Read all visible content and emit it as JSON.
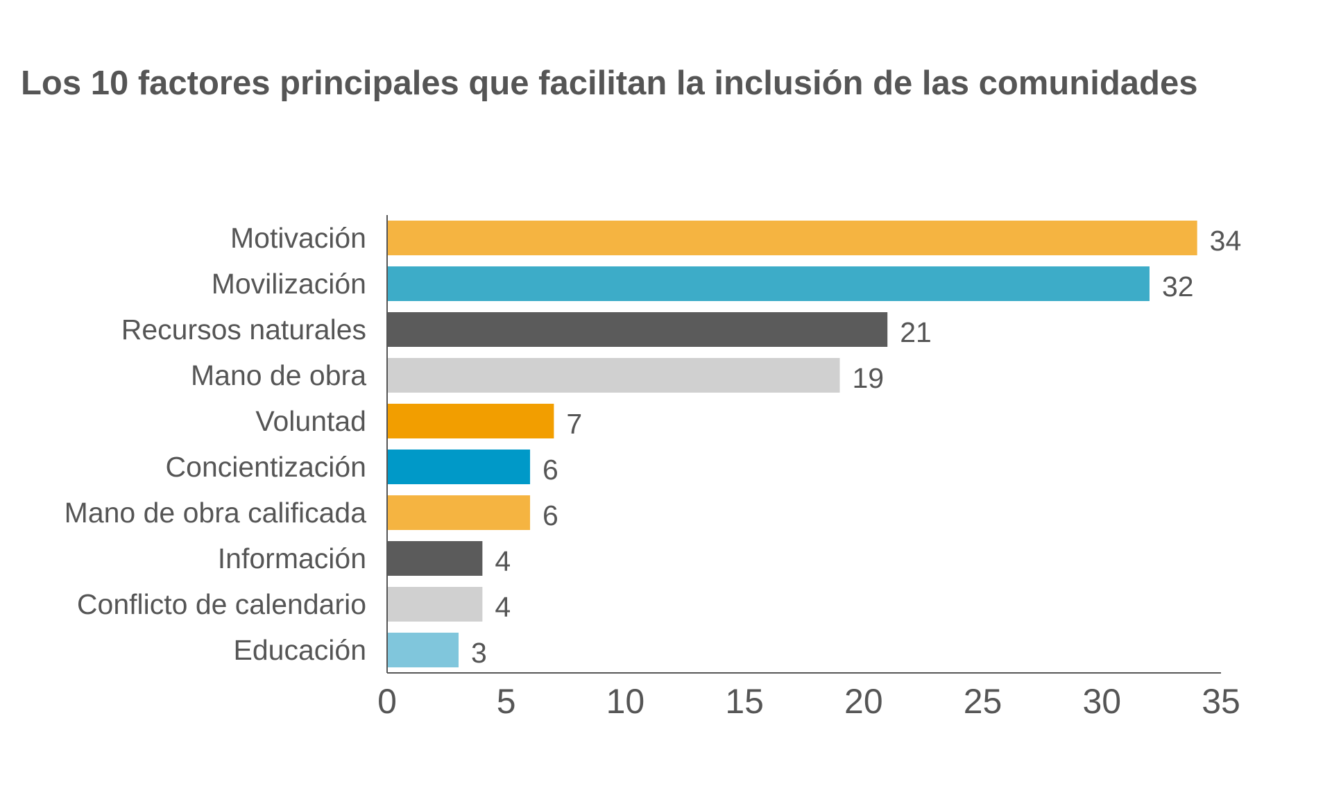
{
  "chart_data": {
    "type": "bar",
    "orientation": "horizontal",
    "title": "Los 10 factores principales que facilitan la inclusión de las comunidades",
    "categories": [
      "Motivación",
      "Movilización",
      "Recursos naturales",
      "Mano de obra",
      "Voluntad",
      "Concientización",
      "Mano de obra calificada",
      "Información",
      "Conflicto de calendario",
      "Educación"
    ],
    "values": [
      34,
      32,
      21,
      19,
      7,
      6,
      6,
      4,
      4,
      3
    ],
    "colors": [
      "#F5B441",
      "#3DACC8",
      "#5B5B5B",
      "#D0D0D0",
      "#F29E00",
      "#0099C8",
      "#F5B441",
      "#5B5B5B",
      "#D0D0D0",
      "#80C6DC"
    ],
    "xlim": [
      0,
      35
    ],
    "xticks": [
      0,
      5,
      10,
      15,
      20,
      25,
      30,
      35
    ],
    "xlabel": "",
    "ylabel": "",
    "grid": false,
    "data_labels": true
  }
}
